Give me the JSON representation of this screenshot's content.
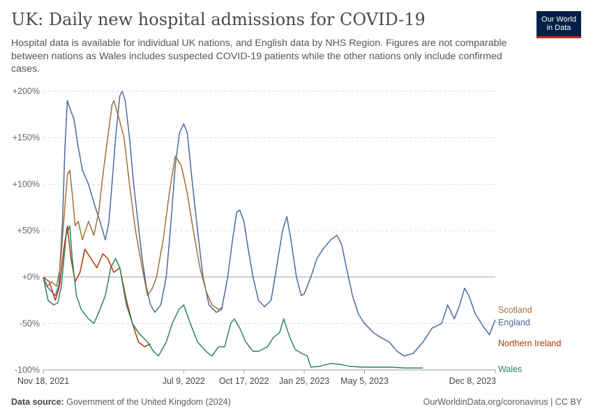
{
  "header": {
    "title": "UK: Daily new hospital admissions for COVID-19",
    "subtitle": "Hospital data is available for individual UK nations, and English data by NHS Region. Figures are not comparable between nations as Wales includes suspected COVID-19 patients while the other nations only include confirmed cases."
  },
  "logo": {
    "line1": "Our World",
    "line2": "in Data",
    "bg": "#002147",
    "accent": "#ce261e"
  },
  "footer": {
    "source_label": "Data source:",
    "source_text": "Government of the United Kingdom (2024)",
    "right_text": "OurWorldinData.org/coronavirus | CC BY"
  },
  "chart_data": {
    "type": "line",
    "title": "UK: Daily new hospital admissions for COVID-19",
    "ylabel": "",
    "ylim": [
      -100,
      200
    ],
    "y_unit": "%",
    "yticks": [
      {
        "value": 200,
        "label": "+200%"
      },
      {
        "value": 150,
        "label": "+150%"
      },
      {
        "value": 100,
        "label": "+100%"
      },
      {
        "value": 50,
        "label": "+50%"
      },
      {
        "value": 0,
        "label": "+0%"
      },
      {
        "value": -50,
        "label": "-50%"
      },
      {
        "value": -100,
        "label": "-100%"
      }
    ],
    "xlim": [
      "2021-11-18",
      "2023-12-08"
    ],
    "xticks": [
      {
        "value": "2021-11-18",
        "label": "Nov 18, 2021"
      },
      {
        "value": "2022-07-09",
        "label": "Jul 9, 2022"
      },
      {
        "value": "2022-10-17",
        "label": "Oct 17, 2022"
      },
      {
        "value": "2023-01-25",
        "label": "Jan 25, 2023"
      },
      {
        "value": "2023-05-05",
        "label": "May 5, 2023"
      },
      {
        "value": "2023-12-08",
        "label": "Dec 8, 2023"
      }
    ],
    "grid": true,
    "legend": "line-end labels",
    "series": [
      {
        "name": "England",
        "color": "#4c6a9c",
        "points": [
          [
            "2021-11-18",
            0
          ],
          [
            "2021-11-24",
            -10
          ],
          [
            "2021-12-01",
            -15
          ],
          [
            "2021-12-08",
            -20
          ],
          [
            "2021-12-14",
            -8
          ],
          [
            "2021-12-20",
            60
          ],
          [
            "2021-12-24",
            140
          ],
          [
            "2021-12-28",
            190
          ],
          [
            "2022-01-02",
            180
          ],
          [
            "2022-01-08",
            170
          ],
          [
            "2022-01-15",
            140
          ],
          [
            "2022-01-22",
            115
          ],
          [
            "2022-02-01",
            100
          ],
          [
            "2022-02-10",
            80
          ],
          [
            "2022-02-20",
            60
          ],
          [
            "2022-03-01",
            40
          ],
          [
            "2022-03-07",
            60
          ],
          [
            "2022-03-12",
            100
          ],
          [
            "2022-03-18",
            150
          ],
          [
            "2022-03-25",
            195
          ],
          [
            "2022-03-29",
            200
          ],
          [
            "2022-04-03",
            190
          ],
          [
            "2022-04-10",
            150
          ],
          [
            "2022-04-17",
            100
          ],
          [
            "2022-04-24",
            60
          ],
          [
            "2022-05-01",
            20
          ],
          [
            "2022-05-08",
            -10
          ],
          [
            "2022-05-15",
            -30
          ],
          [
            "2022-05-22",
            -38
          ],
          [
            "2022-06-01",
            -30
          ],
          [
            "2022-06-10",
            0
          ],
          [
            "2022-06-18",
            60
          ],
          [
            "2022-06-25",
            120
          ],
          [
            "2022-07-02",
            155
          ],
          [
            "2022-07-09",
            165
          ],
          [
            "2022-07-15",
            155
          ],
          [
            "2022-07-22",
            110
          ],
          [
            "2022-08-01",
            50
          ],
          [
            "2022-08-10",
            0
          ],
          [
            "2022-08-20",
            -30
          ],
          [
            "2022-09-01",
            -38
          ],
          [
            "2022-09-10",
            -35
          ],
          [
            "2022-09-20",
            0
          ],
          [
            "2022-09-28",
            40
          ],
          [
            "2022-10-05",
            70
          ],
          [
            "2022-10-10",
            72
          ],
          [
            "2022-10-17",
            60
          ],
          [
            "2022-10-24",
            30
          ],
          [
            "2022-11-01",
            0
          ],
          [
            "2022-11-10",
            -25
          ],
          [
            "2022-11-20",
            -32
          ],
          [
            "2022-12-01",
            -25
          ],
          [
            "2022-12-10",
            10
          ],
          [
            "2022-12-20",
            50
          ],
          [
            "2022-12-27",
            65
          ],
          [
            "2023-01-03",
            40
          ],
          [
            "2023-01-12",
            0
          ],
          [
            "2023-01-20",
            -20
          ],
          [
            "2023-01-25",
            -18
          ],
          [
            "2023-02-05",
            0
          ],
          [
            "2023-02-15",
            20
          ],
          [
            "2023-02-25",
            30
          ],
          [
            "2023-03-10",
            40
          ],
          [
            "2023-03-20",
            45
          ],
          [
            "2023-03-28",
            35
          ],
          [
            "2023-04-05",
            10
          ],
          [
            "2023-04-15",
            -20
          ],
          [
            "2023-04-25",
            -40
          ],
          [
            "2023-05-05",
            -50
          ],
          [
            "2023-05-20",
            -60
          ],
          [
            "2023-06-01",
            -65
          ],
          [
            "2023-06-15",
            -70
          ],
          [
            "2023-06-28",
            -80
          ],
          [
            "2023-07-10",
            -85
          ],
          [
            "2023-07-25",
            -82
          ],
          [
            "2023-08-10",
            -70
          ],
          [
            "2023-08-25",
            -55
          ],
          [
            "2023-09-10",
            -50
          ],
          [
            "2023-09-20",
            -30
          ],
          [
            "2023-10-01",
            -45
          ],
          [
            "2023-10-10",
            -30
          ],
          [
            "2023-10-18",
            -12
          ],
          [
            "2023-10-25",
            -20
          ],
          [
            "2023-11-05",
            -40
          ],
          [
            "2023-11-20",
            -55
          ],
          [
            "2023-11-28",
            -62
          ],
          [
            "2023-12-08",
            -46
          ]
        ],
        "label": "England"
      },
      {
        "name": "Scotland",
        "color": "#a2703a",
        "points": [
          [
            "2021-11-18",
            0
          ],
          [
            "2021-11-25",
            -10
          ],
          [
            "2021-12-02",
            -5
          ],
          [
            "2021-12-10",
            -10
          ],
          [
            "2021-12-16",
            10
          ],
          [
            "2021-12-22",
            60
          ],
          [
            "2021-12-28",
            110
          ],
          [
            "2022-01-01",
            115
          ],
          [
            "2022-01-05",
            90
          ],
          [
            "2022-01-10",
            55
          ],
          [
            "2022-01-15",
            60
          ],
          [
            "2022-01-22",
            40
          ],
          [
            "2022-02-01",
            60
          ],
          [
            "2022-02-10",
            45
          ],
          [
            "2022-02-18",
            70
          ],
          [
            "2022-02-25",
            110
          ],
          [
            "2022-03-05",
            150
          ],
          [
            "2022-03-12",
            185
          ],
          [
            "2022-03-15",
            190
          ],
          [
            "2022-03-22",
            175
          ],
          [
            "2022-04-01",
            150
          ],
          [
            "2022-04-10",
            100
          ],
          [
            "2022-04-20",
            50
          ],
          [
            "2022-05-01",
            10
          ],
          [
            "2022-05-10",
            -20
          ],
          [
            "2022-05-18",
            -12
          ],
          [
            "2022-05-25",
            0
          ],
          [
            "2022-06-05",
            40
          ],
          [
            "2022-06-15",
            90
          ],
          [
            "2022-06-25",
            130
          ],
          [
            "2022-07-05",
            120
          ],
          [
            "2022-07-15",
            90
          ],
          [
            "2022-07-25",
            50
          ],
          [
            "2022-08-05",
            10
          ],
          [
            "2022-08-15",
            -15
          ],
          [
            "2022-08-25",
            -30
          ],
          [
            "2022-09-05",
            -35
          ],
          [
            "2022-09-10",
            -33
          ]
        ],
        "label": "Scotland"
      },
      {
        "name": "Northern Ireland",
        "color": "#b13507",
        "points": [
          [
            "2021-11-18",
            0
          ],
          [
            "2021-11-28",
            -5
          ],
          [
            "2021-12-08",
            -25
          ],
          [
            "2021-12-15",
            -10
          ],
          [
            "2021-12-22",
            30
          ],
          [
            "2021-12-28",
            55
          ],
          [
            "2022-01-03",
            20
          ],
          [
            "2022-01-10",
            -5
          ],
          [
            "2022-01-18",
            5
          ],
          [
            "2022-01-26",
            30
          ],
          [
            "2022-02-05",
            20
          ],
          [
            "2022-02-15",
            10
          ],
          [
            "2022-02-25",
            25
          ],
          [
            "2022-03-05",
            20
          ],
          [
            "2022-03-15",
            5
          ],
          [
            "2022-03-25",
            10
          ],
          [
            "2022-04-05",
            -25
          ],
          [
            "2022-04-15",
            -50
          ],
          [
            "2022-04-25",
            -70
          ],
          [
            "2022-05-05",
            -75
          ],
          [
            "2022-05-15",
            -72
          ]
        ],
        "label": "Northern Ireland"
      },
      {
        "name": "Wales",
        "color": "#2c8465",
        "points": [
          [
            "2021-11-18",
            0
          ],
          [
            "2021-11-26",
            -25
          ],
          [
            "2021-12-05",
            -30
          ],
          [
            "2021-12-12",
            -28
          ],
          [
            "2021-12-18",
            -10
          ],
          [
            "2021-12-26",
            45
          ],
          [
            "2022-01-01",
            55
          ],
          [
            "2022-01-05",
            20
          ],
          [
            "2022-01-12",
            -20
          ],
          [
            "2022-01-20",
            -35
          ],
          [
            "2022-02-01",
            -45
          ],
          [
            "2022-02-10",
            -50
          ],
          [
            "2022-02-20",
            -35
          ],
          [
            "2022-03-01",
            -20
          ],
          [
            "2022-03-10",
            10
          ],
          [
            "2022-03-18",
            20
          ],
          [
            "2022-03-25",
            10
          ],
          [
            "2022-04-05",
            -30
          ],
          [
            "2022-04-15",
            -50
          ],
          [
            "2022-04-25",
            -60
          ],
          [
            "2022-05-10",
            -70
          ],
          [
            "2022-05-20",
            -80
          ],
          [
            "2022-05-28",
            -85
          ],
          [
            "2022-06-10",
            -70
          ],
          [
            "2022-06-20",
            -50
          ],
          [
            "2022-07-01",
            -35
          ],
          [
            "2022-07-09",
            -30
          ],
          [
            "2022-07-20",
            -50
          ],
          [
            "2022-08-01",
            -70
          ],
          [
            "2022-08-15",
            -80
          ],
          [
            "2022-08-25",
            -85
          ],
          [
            "2022-09-05",
            -75
          ],
          [
            "2022-09-15",
            -75
          ],
          [
            "2022-09-25",
            -50
          ],
          [
            "2022-10-01",
            -45
          ],
          [
            "2022-10-10",
            -55
          ],
          [
            "2022-10-20",
            -70
          ],
          [
            "2022-11-01",
            -80
          ],
          [
            "2022-11-10",
            -80
          ],
          [
            "2022-11-25",
            -75
          ],
          [
            "2022-12-05",
            -65
          ],
          [
            "2022-12-15",
            -60
          ],
          [
            "2022-12-22",
            -45
          ],
          [
            "2023-01-01",
            -65
          ],
          [
            "2023-01-10",
            -78
          ],
          [
            "2023-01-20",
            -82
          ],
          [
            "2023-01-30",
            -85
          ],
          [
            "2023-02-05",
            -97
          ],
          [
            "2023-02-20",
            -96
          ],
          [
            "2023-03-10",
            -93
          ],
          [
            "2023-03-25",
            -94
          ],
          [
            "2023-04-10",
            -96
          ],
          [
            "2023-05-01",
            -97
          ],
          [
            "2023-06-01",
            -97
          ],
          [
            "2023-06-20",
            -97
          ],
          [
            "2023-07-10",
            -98
          ],
          [
            "2023-08-10",
            -98
          ]
        ],
        "label": "Wales"
      }
    ]
  }
}
